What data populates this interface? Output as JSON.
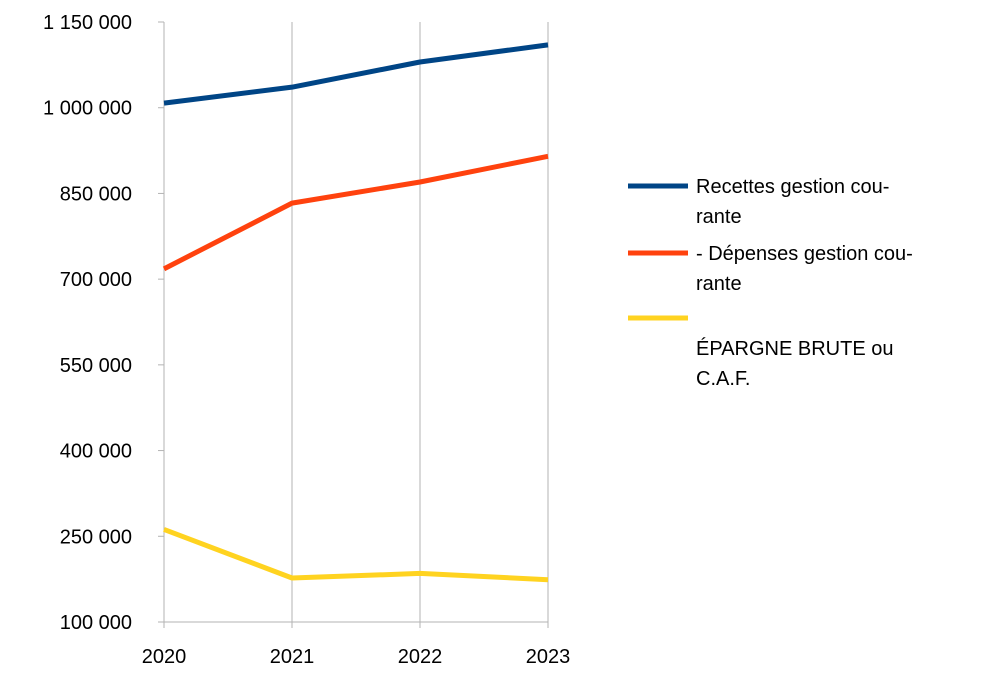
{
  "chart_data": {
    "type": "line",
    "title": "",
    "xlabel": "",
    "ylabel": "",
    "categories": [
      "2020",
      "2021",
      "2022",
      "2023"
    ],
    "y_ticks": [
      "100 000",
      "250 000",
      "400 000",
      "550 000",
      "700 000",
      "850 000",
      "1 000 000",
      "1 150 000"
    ],
    "y_tick_values": [
      100000,
      250000,
      400000,
      550000,
      700000,
      850000,
      1000000,
      1150000
    ],
    "ylim": [
      100000,
      1150000
    ],
    "grid": "vertical",
    "legend_position": "right",
    "series": [
      {
        "name_lines": [
          "Recettes gestion cou-",
          "rante"
        ],
        "color": "#004586",
        "values": [
          1008000,
          1036000,
          1080000,
          1110000
        ]
      },
      {
        "name_lines": [
          "- Dépenses gestion cou-",
          "rante"
        ],
        "color": "#ff420e",
        "values": [
          718000,
          833000,
          870000,
          915000
        ]
      },
      {
        "name_lines": [
          "",
          "ÉPARGNE BRUTE ou",
          "C.A.F."
        ],
        "color": "#ffd320",
        "values": [
          262000,
          177000,
          185000,
          174000
        ]
      }
    ]
  }
}
